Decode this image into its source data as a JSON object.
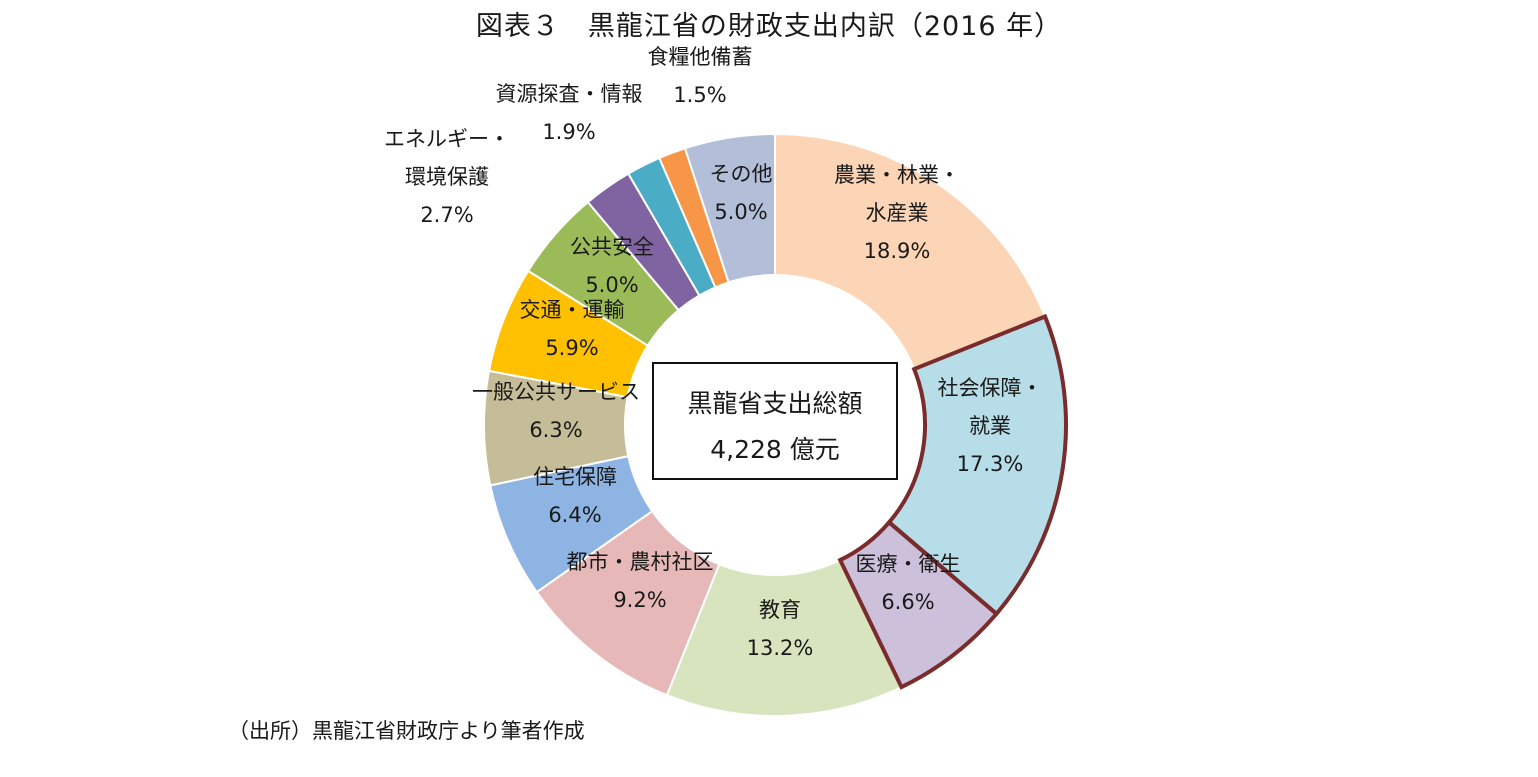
{
  "title": "図表３　黒龍江省の財政支出内訳（2016 年）",
  "center": {
    "label": "黒龍省支出総額",
    "value": "4,228 億元"
  },
  "source": "（出所）黒龍江省財政庁より筆者作成",
  "chart_data": {
    "type": "pie",
    "style": "donut",
    "unit": "%",
    "highlight_color": "#7a2b2b",
    "slices": [
      {
        "label": [
          "農業・林業・",
          "水産業"
        ],
        "value": 18.9,
        "display": "18.9%",
        "color": "#fbd5b5",
        "highlighted": false
      },
      {
        "label": [
          "社会保障・",
          "就業"
        ],
        "value": 17.3,
        "display": "17.3%",
        "color": "#b7dde8",
        "highlighted": true
      },
      {
        "label": [
          "医療・衛生"
        ],
        "value": 6.6,
        "display": "6.6%",
        "color": "#ccc0da",
        "highlighted": true
      },
      {
        "label": [
          "教育"
        ],
        "value": 13.2,
        "display": "13.2%",
        "color": "#d7e4bd",
        "highlighted": false
      },
      {
        "label": [
          "都市・農村社区"
        ],
        "value": 9.2,
        "display": "9.2%",
        "color": "#e6b9b8",
        "highlighted": false
      },
      {
        "label": [
          "住宅保障"
        ],
        "value": 6.4,
        "display": "6.4%",
        "color": "#8db4e2",
        "highlighted": false
      },
      {
        "label": [
          "一般公共サービス"
        ],
        "value": 6.3,
        "display": "6.3%",
        "color": "#c4bd97",
        "highlighted": false
      },
      {
        "label": [
          "交通・運輸"
        ],
        "value": 5.9,
        "display": "5.9%",
        "color": "#ffc000",
        "highlighted": false
      },
      {
        "label": [
          "公共安全"
        ],
        "value": 5.0,
        "display": "5.0%",
        "color": "#9bbb59",
        "highlighted": false
      },
      {
        "label": [
          "エネルギー・",
          "環境保護"
        ],
        "value": 2.7,
        "display": "2.7%",
        "color": "#8064a2",
        "highlighted": false
      },
      {
        "label": [
          "資源探査・情報"
        ],
        "value": 1.9,
        "display": "1.9%",
        "color": "#4bacc6",
        "highlighted": false
      },
      {
        "label": [
          "食糧他備蓄"
        ],
        "value": 1.5,
        "display": "1.5%",
        "color": "#f79646",
        "highlighted": false
      },
      {
        "label": [
          "その他"
        ],
        "value": 5.0,
        "display": "5.0%",
        "color": "#b3bfd9",
        "highlighted": false
      }
    ]
  }
}
